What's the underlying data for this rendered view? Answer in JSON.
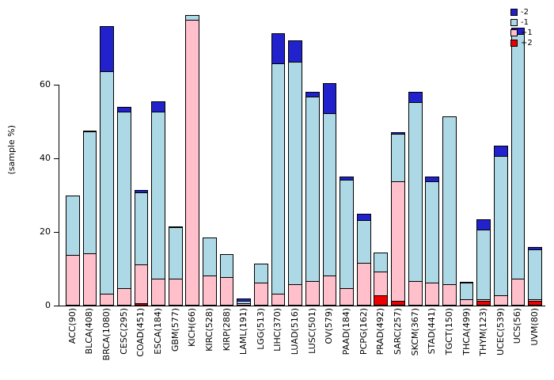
{
  "chart_data": {
    "type": "bar",
    "stacked": true,
    "title": "",
    "ylabel": "(sample %)",
    "xlabel": "",
    "ylim": [
      0,
      80
    ],
    "yticks": [
      0,
      20,
      40,
      60
    ],
    "grid": false,
    "legend_position": "top-right",
    "stack_order_bottom_to_top": [
      "+2",
      "+1",
      "-1",
      "-2"
    ],
    "categories": [
      "ACC(90)",
      "BLCA(408)",
      "BRCA(1080)",
      "CESC(295)",
      "COAD(451)",
      "ESCA(184)",
      "GBM(577)",
      "KICH(66)",
      "KIRC(528)",
      "KIRP(288)",
      "LAML(191)",
      "LGG(513)",
      "LIHC(370)",
      "LUAD(516)",
      "LUSC(501)",
      "OV(579)",
      "PAAD(184)",
      "PCPG(162)",
      "PRAD(492)",
      "SARC(257)",
      "SKCM(367)",
      "STAD(441)",
      "TGCT(150)",
      "THCA(499)",
      "THYM(123)",
      "UCEC(539)",
      "UCS(56)",
      "UVM(80)"
    ],
    "series": [
      {
        "name": "-2",
        "color": "#2222CC",
        "values": [
          0,
          0.5,
          12.5,
          1.5,
          0.8,
          3,
          0.5,
          0,
          0,
          0,
          1,
          0,
          8.5,
          6,
          1.5,
          8.5,
          1,
          2,
          0,
          0.5,
          3,
          1.5,
          0,
          0.3,
          3,
          3,
          2,
          1
        ]
      },
      {
        "name": "-1",
        "color": "#ADD8E6",
        "values": [
          16.5,
          33,
          60.5,
          48,
          19.5,
          45.5,
          14,
          1.5,
          10.5,
          6.5,
          0.5,
          5.5,
          62.5,
          60.5,
          50,
          44,
          29.5,
          11.5,
          5.5,
          13,
          48.5,
          27.5,
          46,
          4.5,
          19,
          38,
          66.5,
          13.5
        ]
      },
      {
        "name": "+1",
        "color": "#FFC0CB",
        "values": [
          13.5,
          14,
          3,
          4.5,
          10.5,
          7,
          7,
          77.5,
          8,
          7.5,
          0.5,
          6,
          3,
          5.5,
          6.5,
          8,
          4.5,
          11.5,
          6.5,
          32.5,
          6.5,
          6,
          5.5,
          1.5,
          0.5,
          2.5,
          7,
          0.5
        ]
      },
      {
        "name": "+2",
        "color": "#EE0000",
        "values": [
          0,
          0,
          0,
          0,
          0.5,
          0,
          0,
          0,
          0,
          0,
          0,
          0,
          0,
          0,
          0,
          0,
          0,
          0,
          2.5,
          1,
          0,
          0,
          0,
          0,
          1,
          0,
          0,
          1
        ]
      }
    ]
  }
}
